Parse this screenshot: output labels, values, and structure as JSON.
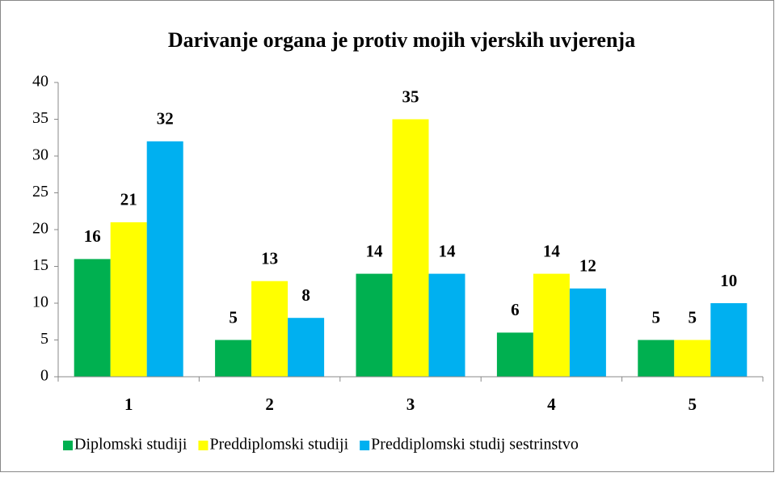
{
  "chart_data": {
    "type": "bar",
    "title": "Darivanje organa je protiv mojih vjerskih uvjerenja",
    "categories": [
      "1",
      "2",
      "3",
      "4",
      "5"
    ],
    "series": [
      {
        "name": "Diplomski studiji",
        "color": "#00b050",
        "values": [
          16,
          5,
          14,
          6,
          5
        ]
      },
      {
        "name": "Preddiplomski studiji",
        "color": "#ffff00",
        "values": [
          21,
          13,
          35,
          14,
          5
        ]
      },
      {
        "name": "Preddiplomski studij sestrinstvo",
        "color": "#00b0f0",
        "values": [
          32,
          8,
          14,
          12,
          10
        ]
      }
    ],
    "ylim": [
      0,
      40
    ],
    "yticks": [
      0,
      5,
      10,
      15,
      20,
      25,
      30,
      35,
      40
    ],
    "legend": "bottom"
  }
}
